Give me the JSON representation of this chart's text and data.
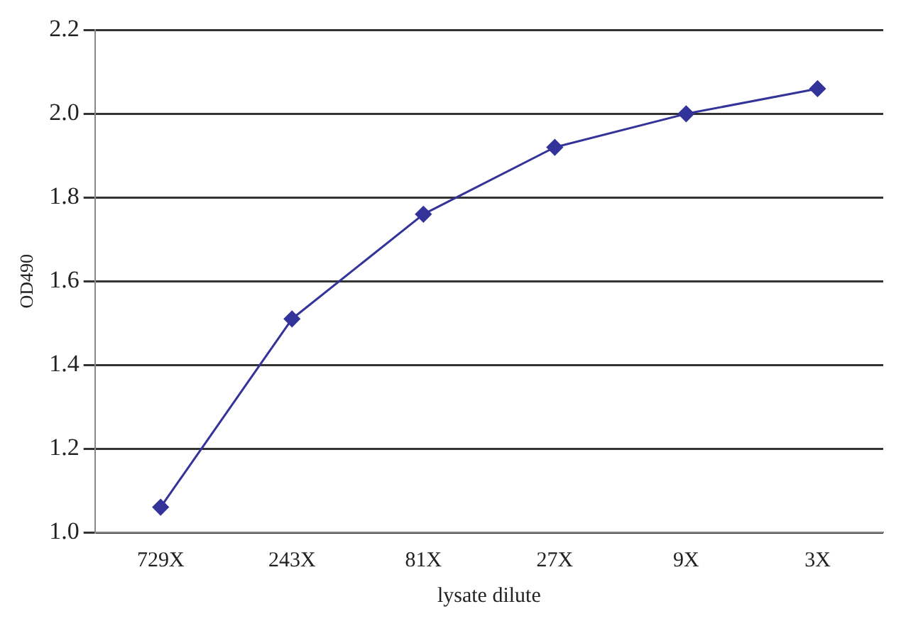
{
  "chart_data": {
    "type": "line",
    "xlabel": "lysate dilute",
    "ylabel": "OD490",
    "categories": [
      "729X",
      "243X",
      "81X",
      "27X",
      "9X",
      "3X"
    ],
    "series": [
      {
        "color": "#33339a",
        "values": [
          1.06,
          1.51,
          1.76,
          1.92,
          2.0,
          2.06
        ]
      }
    ],
    "ylim": [
      1.0,
      2.2
    ],
    "yticks": [
      {
        "value": 1.0,
        "label": "1.0"
      },
      {
        "value": 1.2,
        "label": "1.2"
      },
      {
        "value": 1.4,
        "label": "1.4"
      },
      {
        "value": 1.6,
        "label": "1.6"
      },
      {
        "value": 1.8,
        "label": "1.8"
      },
      {
        "value": 2.0,
        "label": "2.0"
      },
      {
        "value": 2.2,
        "label": "2.2"
      }
    ],
    "grid": "y",
    "legend": false,
    "marker": "diamond",
    "line_style": "solid"
  }
}
